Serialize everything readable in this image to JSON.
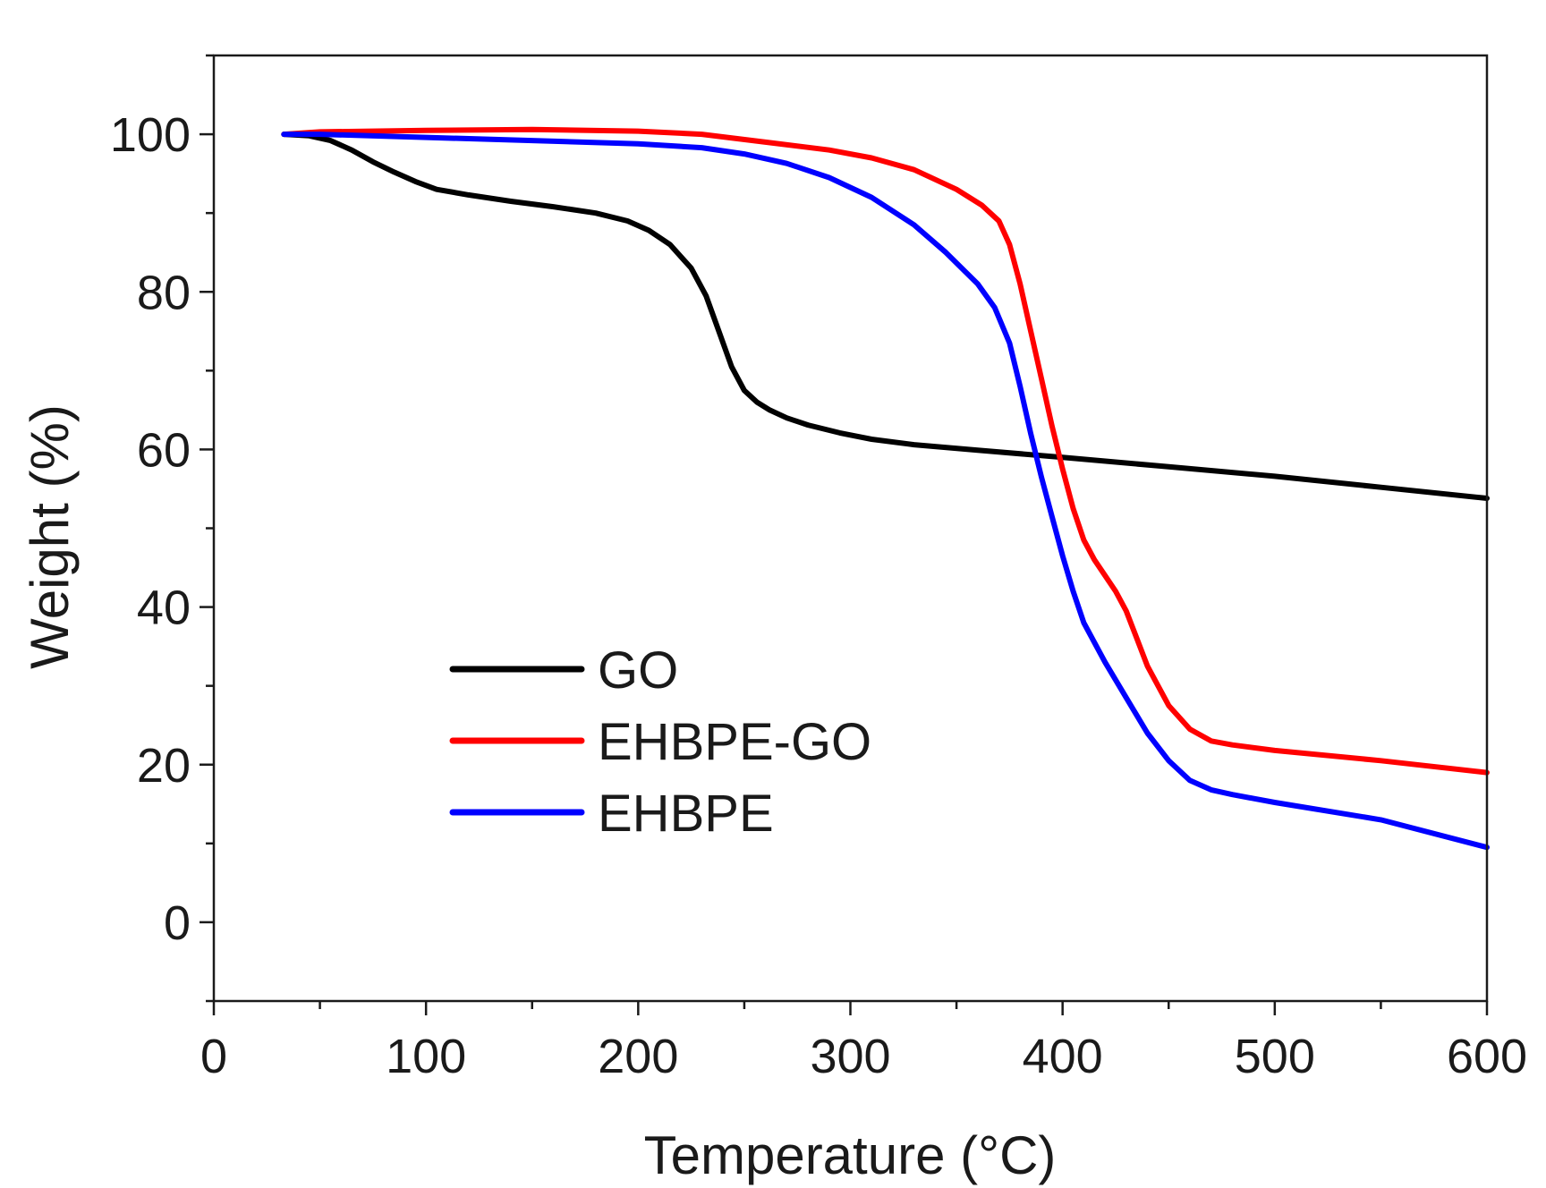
{
  "chart_data": {
    "type": "line",
    "title": "",
    "xlabel": "Temperature (°C)",
    "ylabel": "Weight (%)",
    "xlim": [
      0,
      600
    ],
    "ylim": [
      -10,
      110
    ],
    "x_major_ticks": [
      0,
      100,
      200,
      300,
      400,
      500,
      600
    ],
    "x_tick_labels": [
      "0",
      "100",
      "200",
      "300",
      "400",
      "500",
      "600"
    ],
    "x_minor_ticks": [
      50,
      150,
      250,
      350,
      450,
      550
    ],
    "y_major_ticks": [
      0,
      20,
      40,
      60,
      80,
      100
    ],
    "y_tick_labels": [
      "0",
      "20",
      "40",
      "60",
      "80",
      "100"
    ],
    "y_minor_ticks": [
      -10,
      10,
      30,
      50,
      70,
      90,
      110
    ],
    "grid": false,
    "legend_position": "lower-left",
    "series": [
      {
        "name": "GO",
        "color": "#000000",
        "x": [
          33,
          45,
          55,
          65,
          75,
          85,
          95,
          105,
          120,
          140,
          160,
          180,
          195,
          205,
          215,
          225,
          232,
          238,
          244,
          250,
          256,
          262,
          270,
          280,
          295,
          310,
          330,
          360,
          400,
          450,
          500,
          550,
          600
        ],
        "y": [
          100,
          99.8,
          99.2,
          98,
          96.5,
          95.2,
          94,
          93,
          92.3,
          91.5,
          90.8,
          90,
          89,
          87.8,
          86,
          83,
          79.5,
          75,
          70.5,
          67.5,
          66,
          65,
          64,
          63.1,
          62.1,
          61.3,
          60.6,
          59.9,
          59,
          57.8,
          56.6,
          55.2,
          53.8
        ]
      },
      {
        "name": "EHBPE-GO",
        "color": "#ff0000",
        "x": [
          33,
          50,
          100,
          150,
          200,
          230,
          260,
          290,
          310,
          330,
          350,
          362,
          370,
          375,
          380,
          385,
          390,
          395,
          400,
          405,
          410,
          415,
          420,
          425,
          430,
          435,
          440,
          450,
          460,
          470,
          480,
          500,
          550,
          600
        ],
        "y": [
          100,
          100.3,
          100.5,
          100.6,
          100.4,
          100,
          99,
          98,
          97,
          95.5,
          93,
          91,
          89,
          86,
          81,
          75,
          69,
          63,
          57.5,
          52.5,
          48.5,
          46,
          44,
          42,
          39.5,
          36,
          32.5,
          27.5,
          24.5,
          23,
          22.5,
          21.8,
          20.5,
          19
        ]
      },
      {
        "name": "EHBPE",
        "color": "#0000ff",
        "x": [
          33,
          50,
          100,
          150,
          200,
          230,
          250,
          270,
          290,
          310,
          330,
          345,
          360,
          368,
          375,
          380,
          385,
          390,
          395,
          400,
          405,
          410,
          420,
          430,
          440,
          450,
          460,
          470,
          480,
          500,
          550,
          600
        ],
        "y": [
          100,
          100,
          99.6,
          99.2,
          98.8,
          98.3,
          97.5,
          96.3,
          94.5,
          92,
          88.5,
          85,
          81,
          78,
          73.5,
          68,
          62,
          56.5,
          51.5,
          46.5,
          42,
          38,
          33,
          28.5,
          24,
          20.5,
          18,
          16.8,
          16.2,
          15.2,
          13,
          9.5
        ]
      }
    ]
  }
}
